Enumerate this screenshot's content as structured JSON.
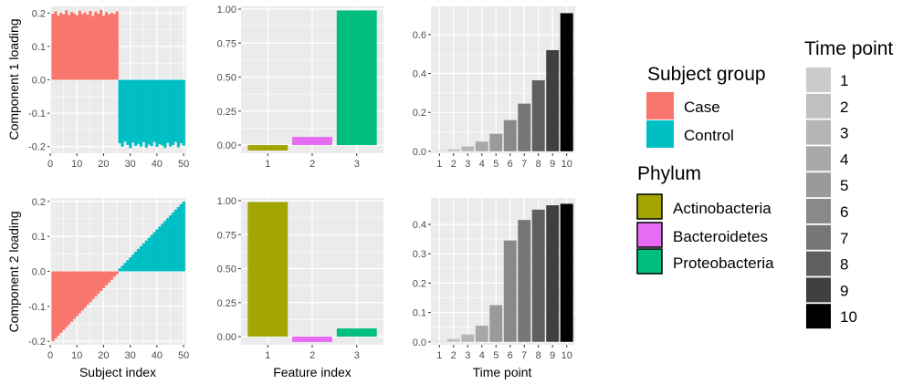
{
  "colors": {
    "panel_bg": "#ebebeb",
    "grid": "#ffffff",
    "case": "#f8766d",
    "control": "#00bfc4",
    "actinobacteria": "#a3a500",
    "bacteroidetes": "#e76bf3",
    "proteobacteria": "#00bf7d"
  },
  "labels": {
    "ylabel_row1": "Component 1 loading",
    "ylabel_row2": "Component 2 loading",
    "xlabel_col1": "Subject index",
    "xlabel_col2": "Feature index",
    "xlabel_col3": "Time point"
  },
  "legend": {
    "subject_group": {
      "title": "Subject group",
      "items": [
        {
          "label": "Case",
          "color": "#f8766d"
        },
        {
          "label": "Control",
          "color": "#00bfc4"
        }
      ]
    },
    "phylum": {
      "title": "Phylum",
      "items": [
        {
          "label": "Actinobacteria",
          "color": "#a3a500"
        },
        {
          "label": "Bacteroidetes",
          "color": "#e76bf3"
        },
        {
          "label": "Proteobacteria",
          "color": "#00bf7d"
        }
      ]
    },
    "time_point": {
      "title": "Time point",
      "items": [
        {
          "label": "1",
          "color": "#cccccc"
        },
        {
          "label": "2",
          "color": "#c0c0c0"
        },
        {
          "label": "3",
          "color": "#b5b5b5"
        },
        {
          "label": "4",
          "color": "#a8a8a8"
        },
        {
          "label": "5",
          "color": "#9a9a9a"
        },
        {
          "label": "6",
          "color": "#898989"
        },
        {
          "label": "7",
          "color": "#767676"
        },
        {
          "label": "8",
          "color": "#5f5f5f"
        },
        {
          "label": "9",
          "color": "#404040"
        },
        {
          "label": "10",
          "color": "#000000"
        }
      ]
    }
  },
  "chart_data": [
    {
      "id": "subject-comp1",
      "type": "bar",
      "row": 1,
      "col": 1,
      "xlim": [
        0,
        51
      ],
      "ylim": [
        -0.22,
        0.22
      ],
      "xticks": [
        0,
        10,
        20,
        30,
        40,
        50
      ],
      "yticks": [
        -0.2,
        -0.1,
        0.0,
        0.1,
        0.2
      ],
      "ytick_labels": [
        "-0.2",
        "-0.1",
        "0.0",
        "0.1",
        "0.2"
      ],
      "x": [
        1,
        2,
        3,
        4,
        5,
        6,
        7,
        8,
        9,
        10,
        11,
        12,
        13,
        14,
        15,
        16,
        17,
        18,
        19,
        20,
        21,
        22,
        23,
        24,
        25,
        26,
        27,
        28,
        29,
        30,
        31,
        32,
        33,
        34,
        35,
        36,
        37,
        38,
        39,
        40,
        41,
        42,
        43,
        44,
        45,
        46,
        47,
        48,
        49,
        50
      ],
      "values": [
        0.198,
        0.205,
        0.192,
        0.201,
        0.196,
        0.208,
        0.194,
        0.203,
        0.199,
        0.193,
        0.207,
        0.197,
        0.202,
        0.195,
        0.206,
        0.191,
        0.204,
        0.198,
        0.209,
        0.192,
        0.203,
        0.196,
        0.201,
        0.197,
        0.205,
        -0.19,
        -0.2,
        -0.185,
        -0.195,
        -0.205,
        -0.188,
        -0.198,
        -0.192,
        -0.2,
        -0.187,
        -0.203,
        -0.194,
        -0.199,
        -0.186,
        -0.201,
        -0.193,
        -0.197,
        -0.204,
        -0.189,
        -0.2,
        -0.195,
        -0.186,
        -0.202,
        -0.19,
        -0.197
      ],
      "groups": [
        "Case",
        "Case",
        "Case",
        "Case",
        "Case",
        "Case",
        "Case",
        "Case",
        "Case",
        "Case",
        "Case",
        "Case",
        "Case",
        "Case",
        "Case",
        "Case",
        "Case",
        "Case",
        "Case",
        "Case",
        "Case",
        "Case",
        "Case",
        "Case",
        "Case",
        "Control",
        "Control",
        "Control",
        "Control",
        "Control",
        "Control",
        "Control",
        "Control",
        "Control",
        "Control",
        "Control",
        "Control",
        "Control",
        "Control",
        "Control",
        "Control",
        "Control",
        "Control",
        "Control",
        "Control",
        "Control",
        "Control",
        "Control",
        "Control",
        "Control"
      ]
    },
    {
      "id": "feature-comp1",
      "type": "bar",
      "row": 1,
      "col": 2,
      "categories": [
        "1",
        "2",
        "3"
      ],
      "values": [
        -0.04,
        0.06,
        0.99
      ],
      "ylim": [
        -0.06,
        1.02
      ],
      "yticks": [
        0.0,
        0.25,
        0.5,
        0.75,
        1.0
      ],
      "ytick_labels": [
        "0.00",
        "0.25",
        "0.50",
        "0.75",
        "1.00"
      ],
      "phylum": [
        "Actinobacteria",
        "Bacteroidetes",
        "Proteobacteria"
      ]
    },
    {
      "id": "time-comp1",
      "type": "bar",
      "row": 1,
      "col": 3,
      "categories": [
        "1",
        "2",
        "3",
        "4",
        "5",
        "6",
        "7",
        "8",
        "9",
        "10"
      ],
      "values": [
        0.003,
        0.01,
        0.025,
        0.05,
        0.09,
        0.16,
        0.245,
        0.365,
        0.52,
        0.71
      ],
      "ylim": [
        -0.01,
        0.745
      ],
      "yticks": [
        0.0,
        0.2,
        0.4,
        0.6
      ],
      "ytick_labels": [
        "0.0",
        "0.2",
        "0.4",
        "0.6"
      ]
    },
    {
      "id": "subject-comp2",
      "type": "bar",
      "row": 2,
      "col": 1,
      "xlim": [
        0,
        51
      ],
      "ylim": [
        -0.21,
        0.21
      ],
      "xticks": [
        0,
        10,
        20,
        30,
        40,
        50
      ],
      "yticks": [
        -0.2,
        -0.1,
        0.0,
        0.1,
        0.2
      ],
      "ytick_labels": [
        "-0.2",
        "-0.1",
        "0.0",
        "0.1",
        "0.2"
      ],
      "x": [
        1,
        2,
        3,
        4,
        5,
        6,
        7,
        8,
        9,
        10,
        11,
        12,
        13,
        14,
        15,
        16,
        17,
        18,
        19,
        20,
        21,
        22,
        23,
        24,
        25,
        26,
        27,
        28,
        29,
        30,
        31,
        32,
        33,
        34,
        35,
        36,
        37,
        38,
        39,
        40,
        41,
        42,
        43,
        44,
        45,
        46,
        47,
        48,
        49,
        50
      ],
      "values": [
        -0.2,
        -0.192,
        -0.184,
        -0.176,
        -0.168,
        -0.16,
        -0.152,
        -0.144,
        -0.136,
        -0.128,
        -0.12,
        -0.112,
        -0.104,
        -0.096,
        -0.088,
        -0.08,
        -0.072,
        -0.064,
        -0.056,
        -0.048,
        -0.04,
        -0.032,
        -0.024,
        -0.016,
        -0.008,
        0.008,
        0.016,
        0.024,
        0.032,
        0.04,
        0.048,
        0.056,
        0.064,
        0.072,
        0.08,
        0.088,
        0.096,
        0.104,
        0.112,
        0.12,
        0.128,
        0.136,
        0.144,
        0.152,
        0.16,
        0.168,
        0.176,
        0.184,
        0.192,
        0.2
      ],
      "groups": [
        "Case",
        "Case",
        "Case",
        "Case",
        "Case",
        "Case",
        "Case",
        "Case",
        "Case",
        "Case",
        "Case",
        "Case",
        "Case",
        "Case",
        "Case",
        "Case",
        "Case",
        "Case",
        "Case",
        "Case",
        "Case",
        "Case",
        "Case",
        "Case",
        "Case",
        "Control",
        "Control",
        "Control",
        "Control",
        "Control",
        "Control",
        "Control",
        "Control",
        "Control",
        "Control",
        "Control",
        "Control",
        "Control",
        "Control",
        "Control",
        "Control",
        "Control",
        "Control",
        "Control",
        "Control",
        "Control",
        "Control",
        "Control",
        "Control",
        "Control"
      ]
    },
    {
      "id": "feature-comp2",
      "type": "bar",
      "row": 2,
      "col": 2,
      "categories": [
        "1",
        "2",
        "3"
      ],
      "values": [
        0.99,
        -0.04,
        0.06
      ],
      "ylim": [
        -0.06,
        1.02
      ],
      "yticks": [
        0.0,
        0.25,
        0.5,
        0.75,
        1.0
      ],
      "ytick_labels": [
        "0.00",
        "0.25",
        "0.50",
        "0.75",
        "1.00"
      ],
      "phylum": [
        "Actinobacteria",
        "Bacteroidetes",
        "Proteobacteria"
      ]
    },
    {
      "id": "time-comp2",
      "type": "bar",
      "row": 2,
      "col": 3,
      "categories": [
        "1",
        "2",
        "3",
        "4",
        "5",
        "6",
        "7",
        "8",
        "9",
        "10"
      ],
      "values": [
        0.002,
        0.01,
        0.025,
        0.055,
        0.125,
        0.345,
        0.415,
        0.45,
        0.465,
        0.47
      ],
      "ylim": [
        -0.01,
        0.49
      ],
      "yticks": [
        0.0,
        0.1,
        0.2,
        0.3,
        0.4
      ],
      "ytick_labels": [
        "0.0",
        "0.1",
        "0.2",
        "0.3",
        "0.4"
      ]
    }
  ]
}
